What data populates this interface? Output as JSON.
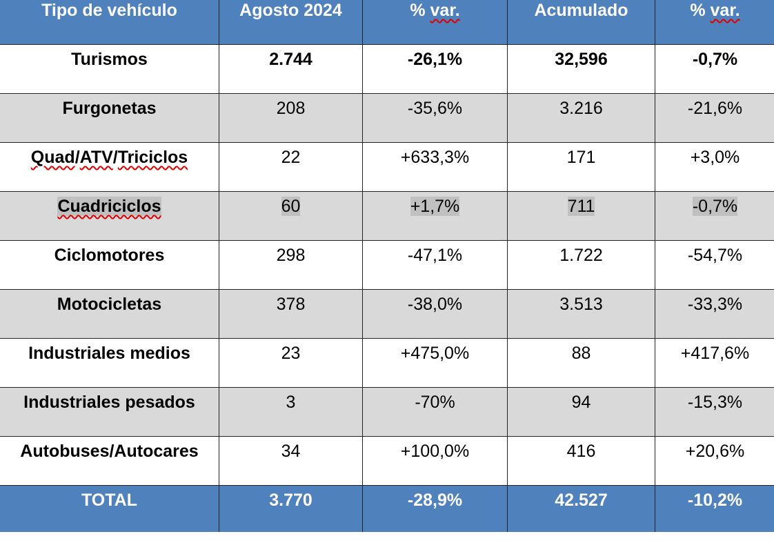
{
  "colors": {
    "header_bg": "#4f81bd",
    "alt_row_bg": "#d9d9d9",
    "highlight": "#c0c0c0",
    "spellcheck": "#e00000"
  },
  "header": [
    "Tipo de vehículo",
    "Agosto 2024",
    "% var.",
    "Acumulado",
    "% var."
  ],
  "rows": [
    [
      "Turismos",
      "2.744",
      "-26,1%",
      "32,596",
      "-0,7%"
    ],
    [
      "Furgonetas",
      "208",
      "-35,6%",
      "3.216",
      "-21,6%"
    ],
    [
      "Quad/ATV/Triciclos",
      "22",
      "+633,3%",
      "171",
      "+3,0%"
    ],
    [
      "Cuadriciclos",
      "60",
      "+1,7%",
      "711",
      "-0,7%"
    ],
    [
      "Ciclomotores",
      "298",
      "-47,1%",
      "1.722",
      "-54,7%"
    ],
    [
      "Motocicletas",
      "378",
      "-38,0%",
      "3.513",
      "-33,3%"
    ],
    [
      "Industriales medios",
      "23",
      "+475,0%",
      "88",
      "+417,6%"
    ],
    [
      "Industriales pesados",
      "3",
      "-70%",
      "94",
      "-15,3%"
    ],
    [
      "Autobuses/Autocares",
      "34",
      "+100,0%",
      "416",
      "+20,6%"
    ]
  ],
  "total": [
    "TOTAL",
    "3.770",
    "-28,9%",
    "42.527",
    "-10,2%"
  ]
}
